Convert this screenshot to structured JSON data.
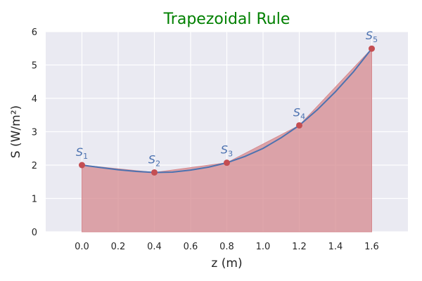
{
  "chart_data": {
    "type": "area",
    "title": "Trapezoidal Rule",
    "xlabel": "z (m)",
    "ylabel": "S (W/m²)",
    "xlim": [
      -0.2,
      1.8
    ],
    "ylim": [
      0,
      6
    ],
    "xticks": [
      "0.0",
      "0.2",
      "0.4",
      "0.6",
      "0.8",
      "1.0",
      "1.2",
      "1.4",
      "1.6"
    ],
    "yticks": [
      "0",
      "1",
      "2",
      "3",
      "4",
      "5",
      "6"
    ],
    "grid": true,
    "points": [
      {
        "z": 0.0,
        "S": 2.0,
        "label": "S",
        "sub": "1"
      },
      {
        "z": 0.4,
        "S": 1.78,
        "label": "S",
        "sub": "2"
      },
      {
        "z": 0.8,
        "S": 2.07,
        "label": "S",
        "sub": "3"
      },
      {
        "z": 1.2,
        "S": 3.19,
        "label": "S",
        "sub": "4"
      },
      {
        "z": 1.6,
        "S": 5.49,
        "label": "S",
        "sub": "5"
      }
    ],
    "curve": {
      "z": [
        0.0,
        0.1,
        0.2,
        0.3,
        0.4,
        0.5,
        0.6,
        0.7,
        0.8,
        0.9,
        1.0,
        1.1,
        1.2,
        1.3,
        1.4,
        1.5,
        1.6
      ],
      "S": [
        2.0,
        1.93,
        1.86,
        1.81,
        1.78,
        1.79,
        1.85,
        1.94,
        2.07,
        2.26,
        2.5,
        2.82,
        3.19,
        3.66,
        4.2,
        4.8,
        5.49
      ]
    },
    "colors": {
      "background": "#eaeaf2",
      "grid": "#ffffff",
      "title": "#008000",
      "curve": "#4c72b0",
      "fill": "#d68a8f",
      "marker": "#c44e52",
      "point_label": "#4c72b0"
    }
  }
}
